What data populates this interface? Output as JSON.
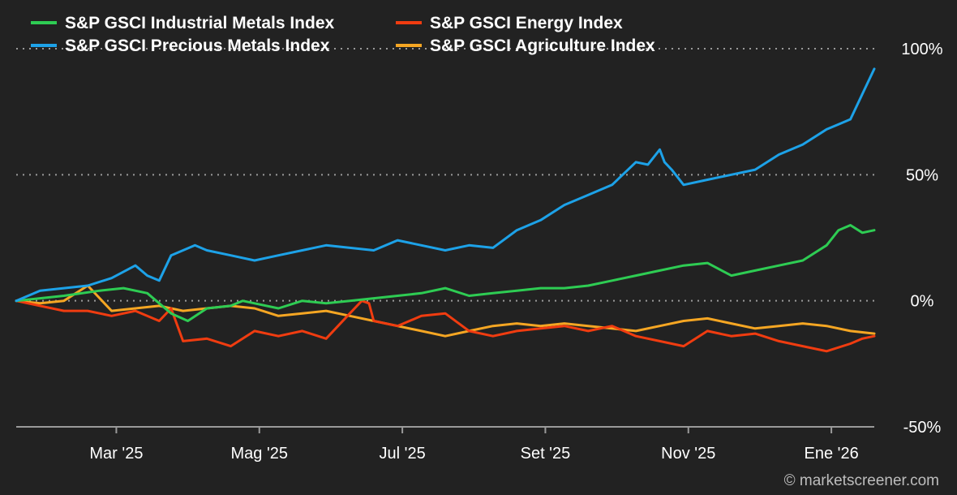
{
  "chart_data": {
    "type": "line",
    "title": "",
    "xlabel": "",
    "ylabel": "",
    "ylim": [
      -50,
      100
    ],
    "y_ticks": [
      "100%",
      "50%",
      "0%",
      "-50%"
    ],
    "y_tick_values": [
      100,
      50,
      0,
      -50
    ],
    "x_ticks": [
      "Mar '25",
      "Mag '25",
      "Jul '25",
      "Set '25",
      "Nov '25",
      "Ene '26"
    ],
    "x_tick_values": [
      42,
      102,
      162,
      222,
      282,
      342
    ],
    "x_range": [
      0,
      360
    ],
    "x_unit": "days since 2025-01-20",
    "grid_y": true,
    "legend_position": "top-left",
    "series": [
      {
        "name": "S&P GSCI Industrial Metals Index",
        "color": "#2ecc53",
        "x": [
          0,
          10,
          20,
          35,
          45,
          55,
          65,
          72,
          80,
          90,
          95,
          100,
          110,
          120,
          130,
          140,
          150,
          160,
          170,
          180,
          190,
          200,
          210,
          220,
          230,
          240,
          250,
          260,
          270,
          280,
          290,
          300,
          310,
          320,
          330,
          340,
          345,
          350,
          355,
          360
        ],
        "values": [
          0,
          1,
          2,
          4,
          5,
          3,
          -5,
          -8,
          -3,
          -2,
          0,
          -1,
          -3,
          0,
          -1,
          0,
          1,
          2,
          3,
          5,
          2,
          3,
          4,
          5,
          5,
          6,
          8,
          10,
          12,
          14,
          15,
          10,
          12,
          14,
          16,
          22,
          28,
          30,
          27,
          28
        ]
      },
      {
        "name": "S&P GSCI Precious Metals Index",
        "color": "#1da2e8",
        "x": [
          0,
          10,
          20,
          30,
          40,
          50,
          55,
          60,
          65,
          70,
          75,
          80,
          90,
          100,
          110,
          120,
          130,
          140,
          150,
          160,
          170,
          180,
          190,
          200,
          210,
          220,
          230,
          240,
          250,
          260,
          265,
          270,
          272,
          275,
          280,
          290,
          300,
          310,
          320,
          330,
          340,
          345,
          350,
          355,
          360
        ],
        "values": [
          0,
          4,
          5,
          6,
          9,
          14,
          10,
          8,
          18,
          20,
          22,
          20,
          18,
          16,
          18,
          20,
          22,
          21,
          20,
          24,
          22,
          20,
          22,
          21,
          28,
          32,
          38,
          42,
          46,
          55,
          54,
          60,
          55,
          52,
          46,
          48,
          50,
          52,
          58,
          62,
          68,
          70,
          72,
          82,
          92
        ]
      },
      {
        "name": "S&P GSCI Energy Index",
        "color": "#f03c10",
        "x": [
          0,
          10,
          20,
          30,
          40,
          50,
          60,
          65,
          70,
          80,
          90,
          100,
          110,
          120,
          130,
          140,
          145,
          148,
          150,
          160,
          170,
          180,
          190,
          200,
          210,
          220,
          230,
          240,
          250,
          260,
          270,
          280,
          290,
          300,
          310,
          320,
          330,
          340,
          350,
          355,
          360
        ],
        "values": [
          0,
          -2,
          -4,
          -4,
          -6,
          -4,
          -8,
          -3,
          -16,
          -15,
          -18,
          -12,
          -14,
          -12,
          -15,
          -5,
          0,
          -1,
          -8,
          -10,
          -6,
          -5,
          -12,
          -14,
          -12,
          -11,
          -10,
          -12,
          -10,
          -14,
          -16,
          -18,
          -12,
          -14,
          -13,
          -16,
          -18,
          -20,
          -17,
          -15,
          -14
        ]
      },
      {
        "name": "S&P GSCI Agriculture Index",
        "color": "#f5a623",
        "x": [
          0,
          10,
          20,
          30,
          40,
          50,
          60,
          70,
          80,
          90,
          100,
          110,
          120,
          130,
          140,
          150,
          160,
          170,
          180,
          190,
          200,
          210,
          220,
          230,
          240,
          250,
          260,
          270,
          280,
          290,
          300,
          310,
          320,
          330,
          340,
          350,
          360
        ],
        "values": [
          0,
          -1,
          0,
          6,
          -4,
          -3,
          -2,
          -4,
          -3,
          -2,
          -3,
          -6,
          -5,
          -4,
          -6,
          -8,
          -10,
          -12,
          -14,
          -12,
          -10,
          -9,
          -10,
          -9,
          -10,
          -11,
          -12,
          -10,
          -8,
          -7,
          -9,
          -11,
          -10,
          -9,
          -10,
          -12,
          -13
        ]
      }
    ]
  },
  "credit": "© marketscreener.com"
}
